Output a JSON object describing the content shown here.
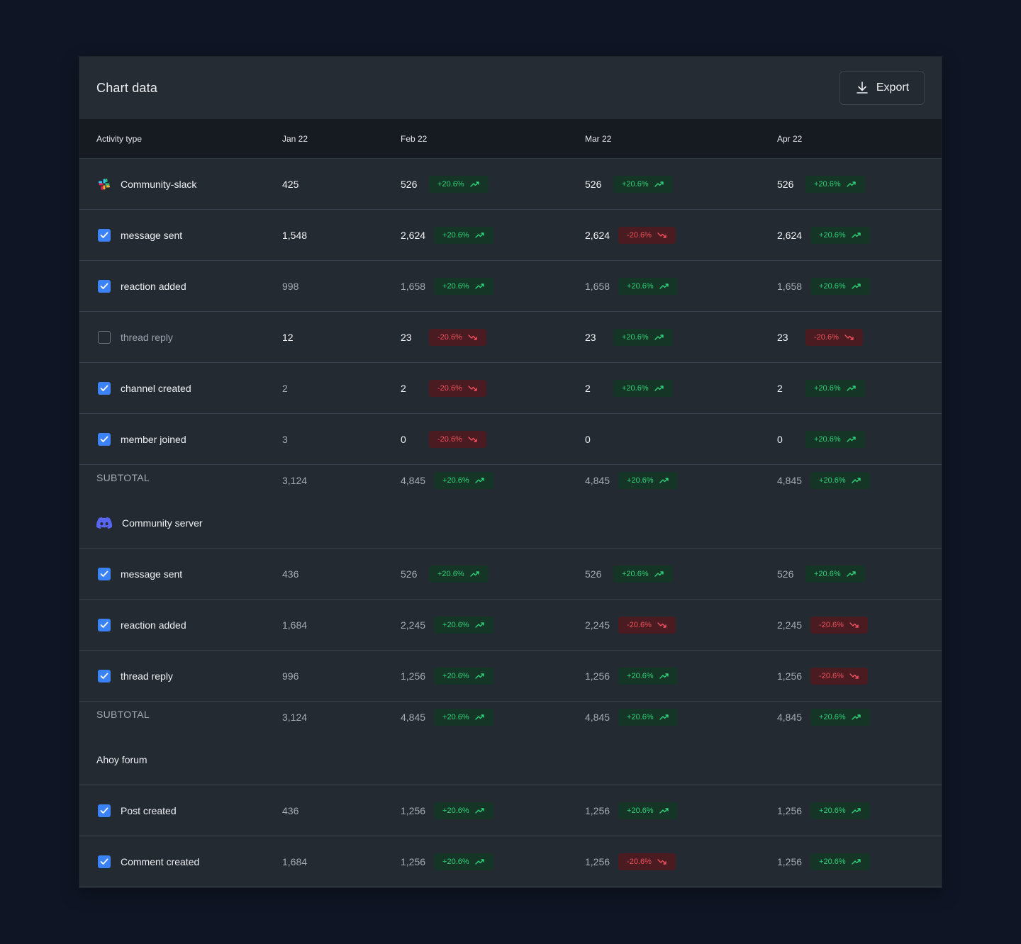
{
  "panel": {
    "title": "Chart data",
    "export_label": "Export"
  },
  "columns": [
    "Activity type",
    "Jan 22",
    "Feb 22",
    "Mar 22",
    "Apr 22"
  ],
  "colors": {
    "up": "#2fd27a",
    "down": "#f0515c",
    "checkbox": "#3b82f6"
  },
  "groups": [
    {
      "title": "Community-slack",
      "icon": "slack-icon",
      "header_values": [
        {
          "value": "425"
        },
        {
          "value": "526",
          "change": "+20.6%",
          "dir": "up"
        },
        {
          "value": "526",
          "change": "+20.6%",
          "dir": "up"
        },
        {
          "value": "526",
          "change": "+20.6%",
          "dir": "up"
        }
      ],
      "rows": [
        {
          "label": "message sent",
          "checked": true,
          "style": "bright",
          "cells": [
            {
              "value": "1,548"
            },
            {
              "value": "2,624",
              "change": "+20.6%",
              "dir": "up"
            },
            {
              "value": "2,624",
              "change": "-20.6%",
              "dir": "down"
            },
            {
              "value": "2,624",
              "change": "+20.6%",
              "dir": "up"
            }
          ]
        },
        {
          "label": "reaction added",
          "checked": true,
          "style": "dim",
          "cells": [
            {
              "value": "998"
            },
            {
              "value": "1,658",
              "change": "+20.6%",
              "dir": "up"
            },
            {
              "value": "1,658",
              "change": "+20.6%",
              "dir": "up"
            },
            {
              "value": "1,658",
              "change": "+20.6%",
              "dir": "up"
            }
          ]
        },
        {
          "label": "thread reply",
          "checked": false,
          "style": "bright",
          "cells": [
            {
              "value": "12"
            },
            {
              "value": "23",
              "change": "-20.6%",
              "dir": "down"
            },
            {
              "value": "23",
              "change": "+20.6%",
              "dir": "up"
            },
            {
              "value": "23",
              "change": "-20.6%",
              "dir": "down"
            }
          ]
        },
        {
          "label": "channel created",
          "checked": true,
          "style": "mixed",
          "cells": [
            {
              "value": "2"
            },
            {
              "value": "2",
              "change": "-20.6%",
              "dir": "down"
            },
            {
              "value": "2",
              "change": "+20.6%",
              "dir": "up"
            },
            {
              "value": "2",
              "change": "+20.6%",
              "dir": "up"
            }
          ]
        },
        {
          "label": "member joined",
          "checked": true,
          "style": "mixed",
          "cells": [
            {
              "value": "3"
            },
            {
              "value": "0",
              "change": "-20.6%",
              "dir": "down"
            },
            {
              "value": "0"
            },
            {
              "value": "0",
              "change": "+20.6%",
              "dir": "up"
            }
          ]
        }
      ],
      "subtotal": {
        "label": "SUBTOTAL",
        "cells": [
          {
            "value": "3,124"
          },
          {
            "value": "4,845",
            "change": "+20.6%",
            "dir": "up"
          },
          {
            "value": "4,845",
            "change": "+20.6%",
            "dir": "up"
          },
          {
            "value": "4,845",
            "change": "+20.6%",
            "dir": "up"
          }
        ]
      }
    },
    {
      "title": "Community server",
      "icon": "discord-icon",
      "rows": [
        {
          "label": "message sent",
          "checked": true,
          "style": "dim",
          "cells": [
            {
              "value": "436"
            },
            {
              "value": "526",
              "change": "+20.6%",
              "dir": "up"
            },
            {
              "value": "526",
              "change": "+20.6%",
              "dir": "up"
            },
            {
              "value": "526",
              "change": "+20.6%",
              "dir": "up"
            }
          ]
        },
        {
          "label": "reaction added",
          "checked": true,
          "style": "dim",
          "cells": [
            {
              "value": "1,684"
            },
            {
              "value": "2,245",
              "change": "+20.6%",
              "dir": "up"
            },
            {
              "value": "2,245",
              "change": "-20.6%",
              "dir": "down"
            },
            {
              "value": "2,245",
              "change": "-20.6%",
              "dir": "down"
            }
          ]
        },
        {
          "label": "thread reply",
          "checked": true,
          "style": "dim",
          "cells": [
            {
              "value": "996"
            },
            {
              "value": "1,256",
              "change": "+20.6%",
              "dir": "up"
            },
            {
              "value": "1,256",
              "change": "+20.6%",
              "dir": "up"
            },
            {
              "value": "1,256",
              "change": "-20.6%",
              "dir": "down"
            }
          ]
        }
      ],
      "subtotal": {
        "label": "SUBTOTAL",
        "cells": [
          {
            "value": "3,124"
          },
          {
            "value": "4,845",
            "change": "+20.6%",
            "dir": "up"
          },
          {
            "value": "4,845",
            "change": "+20.6%",
            "dir": "up"
          },
          {
            "value": "4,845",
            "change": "+20.6%",
            "dir": "up"
          }
        ]
      }
    },
    {
      "title": "Ahoy forum",
      "icon": "",
      "rows": [
        {
          "label": "Post created",
          "checked": true,
          "style": "dim",
          "cells": [
            {
              "value": "436"
            },
            {
              "value": "1,256",
              "change": "+20.6%",
              "dir": "up"
            },
            {
              "value": "1,256",
              "change": "+20.6%",
              "dir": "up"
            },
            {
              "value": "1,256",
              "change": "+20.6%",
              "dir": "up"
            }
          ]
        },
        {
          "label": "Comment created",
          "checked": true,
          "style": "dim",
          "cells": [
            {
              "value": "1,684"
            },
            {
              "value": "1,256",
              "change": "+20.6%",
              "dir": "up"
            },
            {
              "value": "1,256",
              "change": "-20.6%",
              "dir": "down"
            },
            {
              "value": "1,256",
              "change": "+20.6%",
              "dir": "up"
            }
          ]
        }
      ]
    }
  ]
}
